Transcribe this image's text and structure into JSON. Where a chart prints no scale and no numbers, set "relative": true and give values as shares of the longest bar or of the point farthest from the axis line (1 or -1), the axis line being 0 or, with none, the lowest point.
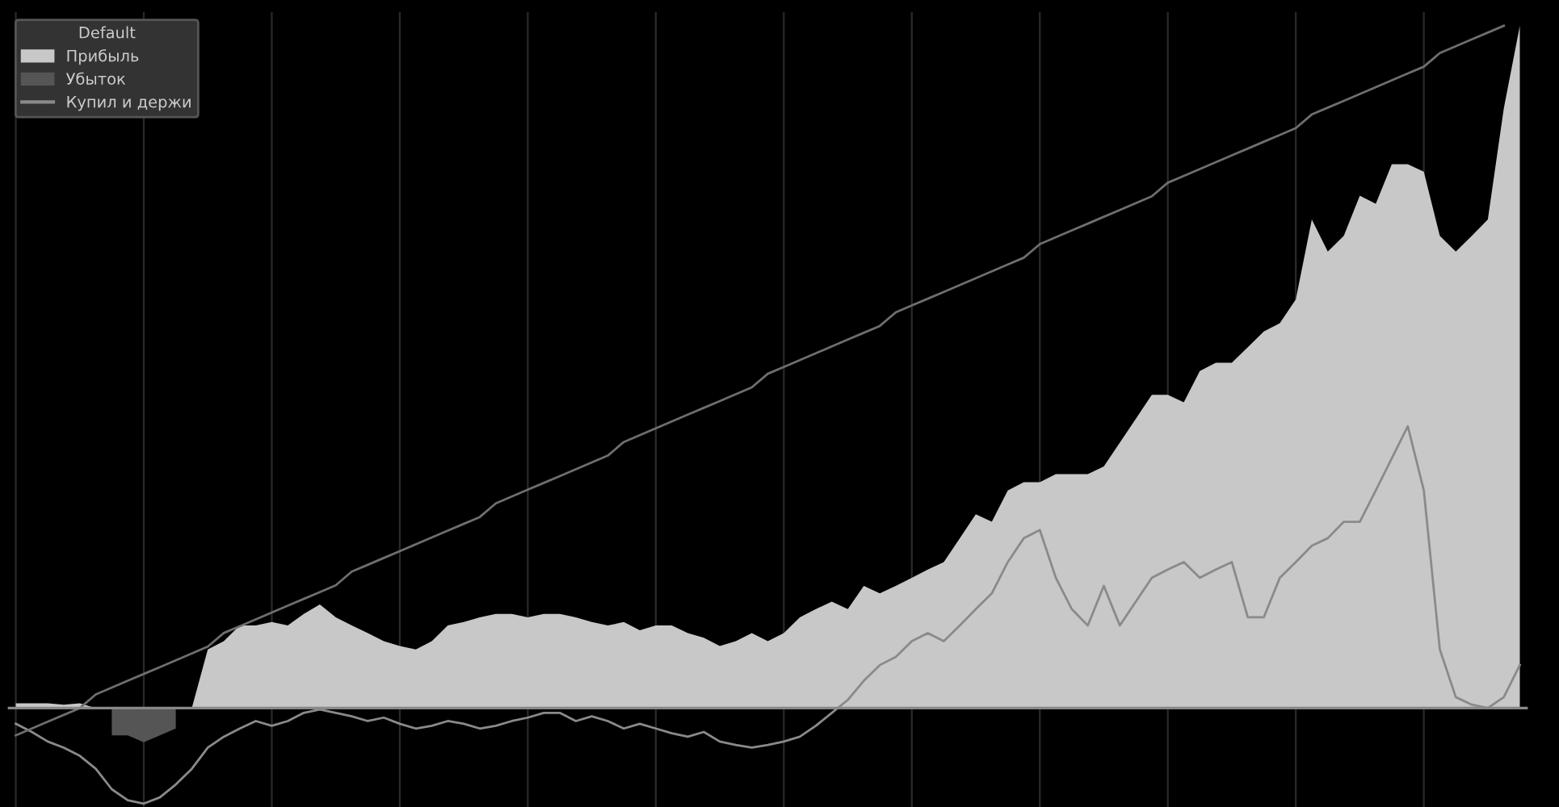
{
  "chart_data": {
    "type": "area",
    "relative": true,
    "legend": "top left",
    "legend_title": "Default",
    "grid": true,
    "categories": [
      null,
      null,
      null,
      null,
      null,
      null,
      null,
      null,
      null,
      null,
      null,
      null,
      null,
      null,
      null,
      null,
      null,
      null,
      null,
      null,
      null,
      null,
      null,
      null,
      null,
      null,
      null,
      null,
      null,
      null,
      null,
      null,
      null,
      null,
      null,
      null,
      null,
      null,
      null,
      null,
      null,
      null,
      null,
      null,
      null,
      null,
      null,
      null,
      null,
      null,
      null,
      null,
      null,
      null,
      null,
      null,
      null,
      null,
      null,
      null,
      null,
      null,
      null,
      null,
      null,
      null,
      null,
      null,
      null,
      null,
      null,
      null,
      null,
      null,
      null,
      null,
      null,
      null,
      null,
      null,
      null,
      null,
      null,
      null,
      null,
      null,
      null,
      null,
      null,
      null,
      null,
      null,
      null,
      null,
      null
    ],
    "series": [
      {
        "name": "Прибыль",
        "color": "#c8c8c8",
        "values": [
          0.007,
          0.007,
          0.007,
          0.005,
          0.007,
          0,
          0,
          0,
          0,
          0,
          0,
          0,
          0.086,
          0.098,
          0.121,
          0.121,
          0.126,
          0.121,
          0.138,
          0.152,
          0.133,
          0.121,
          0.11,
          0.098,
          0.091,
          0.086,
          0.098,
          0.121,
          0.126,
          0.133,
          0.138,
          0.138,
          0.133,
          0.138,
          0.138,
          0.133,
          0.126,
          0.121,
          0.126,
          0.114,
          0.121,
          0.121,
          0.11,
          0.103,
          0.091,
          0.098,
          0.11,
          0.098,
          0.11,
          0.133,
          0.145,
          0.156,
          0.145,
          0.179,
          0.168,
          0.179,
          0.191,
          0.203,
          0.214,
          0.249,
          0.284,
          0.273,
          0.319,
          0.331,
          0.331,
          0.343,
          0.343,
          0.343,
          0.354,
          0.389,
          0.424,
          0.459,
          0.459,
          0.448,
          0.494,
          0.506,
          0.506,
          0.529,
          0.552,
          0.564,
          0.599,
          0.716,
          0.669,
          0.692,
          0.751,
          0.739,
          0.797,
          0.797,
          0.786,
          0.692,
          0.669,
          0.692,
          0.716,
          0.879,
          1.0
        ]
      },
      {
        "name": "Убыток",
        "color": "#555555",
        "values": [
          null,
          null,
          null,
          null,
          null,
          null,
          -0.04,
          -0.04,
          -0.05,
          -0.04,
          -0.03,
          null,
          null,
          null,
          null,
          null,
          null,
          null,
          null,
          null,
          null,
          null,
          null,
          null,
          null,
          null,
          null,
          null,
          null,
          null,
          null,
          null,
          null,
          null,
          null,
          null,
          null,
          null,
          null,
          null,
          null,
          null,
          null,
          null,
          null,
          null,
          null,
          null,
          null,
          null,
          null,
          null,
          null,
          null,
          null,
          null,
          null,
          null,
          null,
          null,
          null,
          null,
          null,
          null,
          null,
          null,
          null,
          null,
          null,
          null,
          null,
          null,
          null,
          null,
          null,
          null,
          null,
          null,
          null,
          null,
          null,
          null,
          null,
          null,
          null,
          null,
          null,
          null,
          null,
          null,
          null,
          null,
          null,
          null,
          null
        ]
      },
      {
        "name": "Купил и держи",
        "type": "line",
        "color": "#8a8a8a",
        "values": [
          -0.023,
          -0.035,
          -0.049,
          -0.058,
          -0.07,
          -0.089,
          -0.119,
          -0.135,
          -0.14,
          -0.131,
          -0.112,
          -0.089,
          -0.058,
          -0.042,
          -0.03,
          -0.019,
          -0.026,
          -0.019,
          -0.007,
          -0.002,
          -0.007,
          -0.012,
          -0.019,
          -0.014,
          -0.023,
          -0.03,
          -0.026,
          -0.019,
          -0.023,
          -0.03,
          -0.026,
          -0.019,
          -0.014,
          -0.007,
          -0.007,
          -0.019,
          -0.012,
          -0.019,
          -0.03,
          -0.023,
          -0.03,
          -0.037,
          -0.042,
          -0.035,
          -0.049,
          -0.054,
          -0.058,
          -0.054,
          -0.049,
          -0.042,
          -0.026,
          -0.007,
          0.012,
          0.04,
          0.063,
          0.075,
          0.098,
          0.11,
          0.098,
          0.121,
          0.145,
          0.168,
          0.214,
          0.249,
          0.261,
          0.191,
          0.145,
          0.121,
          0.179,
          0.121,
          0.156,
          0.191,
          0.203,
          0.214,
          0.191,
          0.203,
          0.214,
          0.133,
          0.133,
          0.191,
          0.214,
          0.238,
          0.249,
          0.273,
          0.273,
          0.319,
          0.366,
          0.413,
          0.319,
          0.086,
          0.016,
          0.005,
          0,
          0.016,
          0.063
        ]
      },
      {
        "type": "line",
        "color": "#6e6e6e",
        "values": [
          -0.04,
          -0.03,
          -0.02,
          -0.01,
          0.0,
          0.02,
          0.03,
          0.04,
          0.05,
          0.06,
          0.07,
          0.08,
          0.09,
          0.11,
          0.12,
          0.13,
          0.14,
          0.15,
          0.16,
          0.17,
          0.18,
          0.2,
          0.21,
          0.22,
          0.23,
          0.24,
          0.25,
          0.26,
          0.27,
          0.28,
          0.3,
          0.31,
          0.32,
          0.33,
          0.34,
          0.35,
          0.36,
          0.37,
          0.39,
          0.4,
          0.41,
          0.42,
          0.43,
          0.44,
          0.45,
          0.46,
          0.47,
          0.49,
          0.5,
          0.51,
          0.52,
          0.53,
          0.54,
          0.55,
          0.56,
          0.58,
          0.59,
          0.6,
          0.61,
          0.62,
          0.63,
          0.64,
          0.65,
          0.66,
          0.68,
          0.69,
          0.7,
          0.71,
          0.72,
          0.73,
          0.74,
          0.75,
          0.77,
          0.78,
          0.79,
          0.8,
          0.81,
          0.82,
          0.83,
          0.84,
          0.85,
          0.87,
          0.88,
          0.89,
          0.9,
          0.91,
          0.92,
          0.93,
          0.94,
          0.96,
          0.97,
          0.98,
          0.99,
          1.0,
          null
        ]
      }
    ]
  }
}
